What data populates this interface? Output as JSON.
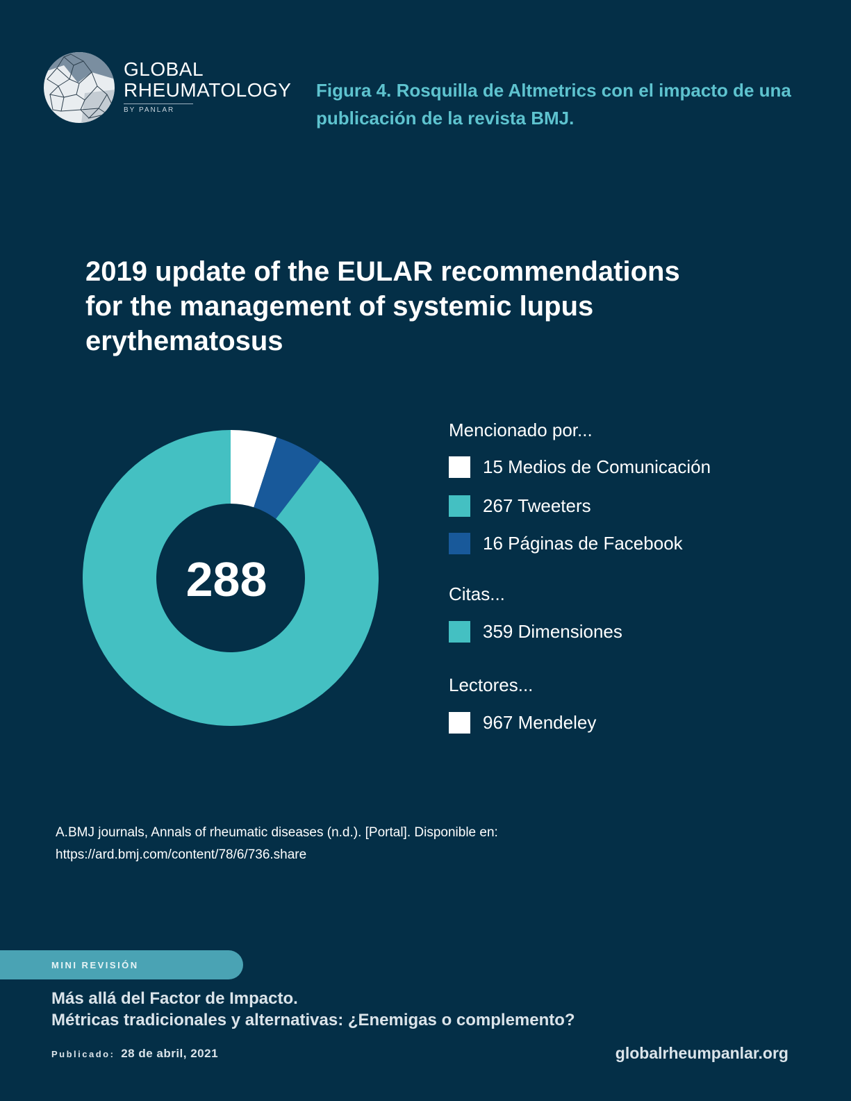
{
  "header": {
    "logo": {
      "line1": "GLOBAL",
      "line2": "RHEUMATOLOGY",
      "byline": "BY PANLAR"
    },
    "figure_caption": "Figura 4. Rosquilla de Altmetrics con el impacto de una publicación de la revista BMJ."
  },
  "article_title": "2019 update of the EULAR recommendations for the management of systemic lupus erythematosus",
  "chart_data": {
    "type": "pie",
    "variant": "donut",
    "center_label": "288",
    "slices": [
      {
        "label": "15 Medios de Comunicación",
        "value": 15,
        "color": "#ffffff"
      },
      {
        "label": "16 Páginas de Facebook",
        "value": 16,
        "color": "#18599a"
      },
      {
        "label": "267 Tweeters",
        "value": 267,
        "color": "#44c0c2"
      }
    ],
    "legend_placement": "right",
    "legend": {
      "mentioned_heading": "Mencionado por...",
      "mentioned": [
        {
          "label": "15 Medios de Comunicación",
          "color": "#ffffff"
        },
        {
          "label": "267 Tweeters",
          "color": "#44c0c2"
        },
        {
          "label": "16 Páginas de Facebook",
          "color": "#18599a"
        }
      ],
      "citations_heading": "Citas...",
      "citations": [
        {
          "label": "359 Dimensiones",
          "color": "#44c0c2"
        }
      ],
      "readers_heading": "Lectores...",
      "readers": [
        {
          "label": "967 Mendeley",
          "color": "#ffffff"
        }
      ]
    }
  },
  "source": {
    "line1": "A.BMJ journals, Annals of rheumatic diseases (n.d.). [Portal]. Disponible en:",
    "line2": "https://ard.bmj.com/content/78/6/736.share"
  },
  "footer": {
    "section": "MINI REVISIÓN",
    "title_line1": "Más allá del Factor de Impacto.",
    "title_line2": "Métricas tradicionales y alternativas: ¿Enemigas o complemento?",
    "published_label": "Publicado:",
    "published_date": "28 de abril, 2021",
    "website": "globalrheumpanlar.org"
  },
  "colors": {
    "background": "#042f47",
    "caption": "#5ec3cf",
    "pill": "#4aa3b4"
  }
}
